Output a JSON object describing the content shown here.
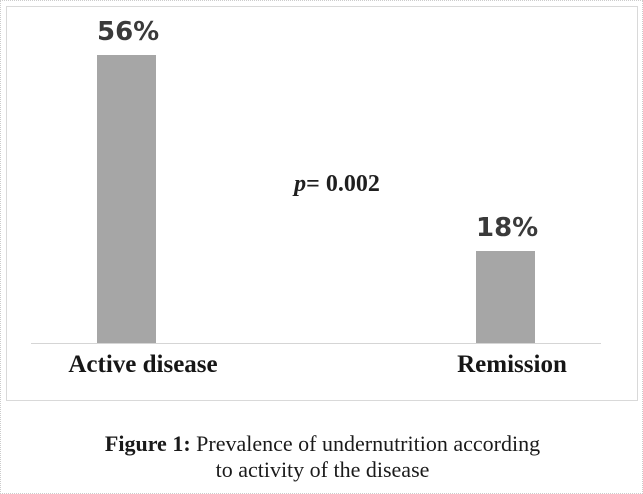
{
  "figure": {
    "caption": {
      "line1_bold": "Figure 1:",
      "line1_rest": " Prevalence of undernutrition according",
      "line2": "to activity of the disease"
    }
  },
  "chart_data": {
    "type": "bar",
    "title": "",
    "xlabel": "",
    "ylabel": "",
    "categories": [
      "Active disease",
      "Remission"
    ],
    "values": [
      56,
      18
    ],
    "value_labels": [
      "56%",
      "18%"
    ],
    "unit": "percent",
    "annotation": {
      "italic_part": "p",
      "rest_part": "= 0.002"
    },
    "ylim": [
      0,
      65
    ],
    "y_axis_visible": false,
    "grid": false,
    "legend": false,
    "bar_color": "#a6a6a6",
    "axis_line_color": "#d5d5d5",
    "box_border_color": "#d9d9d9"
  }
}
